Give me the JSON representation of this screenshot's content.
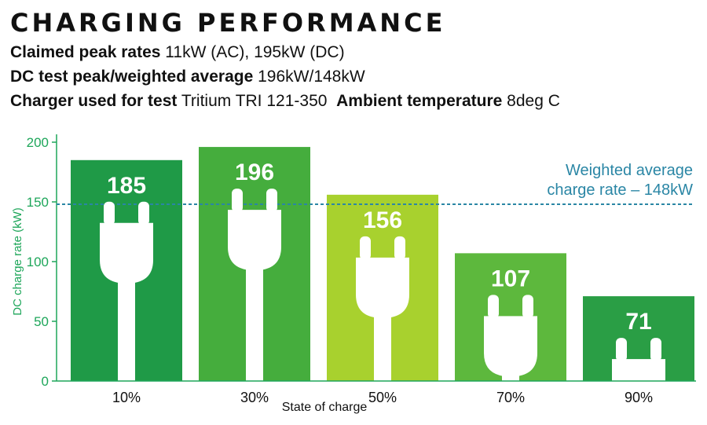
{
  "header": {
    "title": "CHARGING PERFORMANCE",
    "specs": [
      {
        "label": "Claimed peak rates",
        "value": "11kW (AC), 195kW (DC)"
      },
      {
        "label": "DC test peak/weighted average",
        "value": "196kW/148kW"
      },
      {
        "label": "Charger used for test",
        "value": "Tritium TRI 121-350"
      },
      {
        "label": "Ambient temperature",
        "value": "8deg C"
      }
    ]
  },
  "chart_data": {
    "type": "bar",
    "title": "",
    "xlabel": "State of charge",
    "ylabel": "DC charge rate (kW)",
    "categories": [
      "10%",
      "30%",
      "50%",
      "70%",
      "90%"
    ],
    "values": [
      185,
      196,
      156,
      107,
      71
    ],
    "value_labels": [
      "185",
      "196",
      "156",
      "107",
      "71"
    ],
    "ylim": [
      0,
      200
    ],
    "yticks": [
      0,
      50,
      100,
      150,
      200
    ],
    "ytick_labels": [
      "0",
      "50",
      "100",
      "150",
      "200"
    ],
    "reference_line": {
      "value": 148,
      "label_line1": "Weighted average",
      "label_line2": "charge rate – 148kW"
    },
    "colors": {
      "bars": [
        "#1f9a47",
        "#45ad3d",
        "#a8d12e",
        "#5db83d",
        "#2a9e45"
      ],
      "axis": "#1ea65a",
      "reference": "#2a86a5",
      "icon": "#ffffff"
    }
  }
}
